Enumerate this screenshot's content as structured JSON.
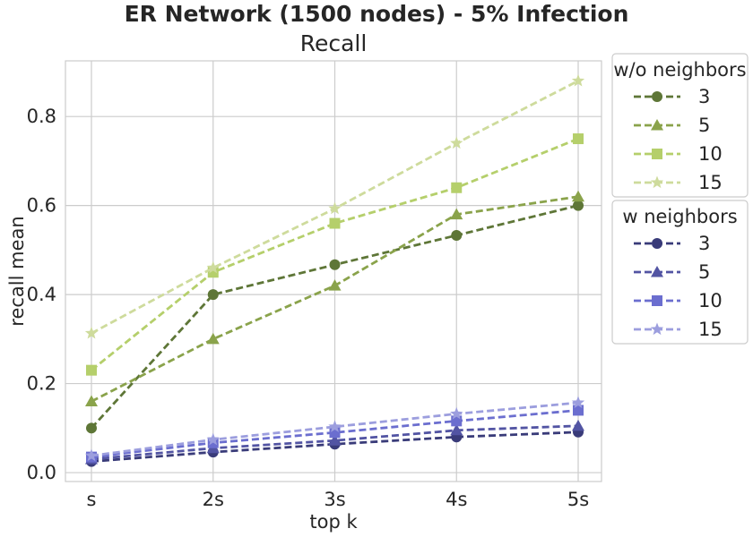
{
  "chart_data": {
    "type": "line",
    "title": "ER Network (1500 nodes) - 5% Infection",
    "subtitle": "Recall",
    "xlabel": "top k",
    "ylabel": "recall mean",
    "categories": [
      "s",
      "2s",
      "3s",
      "4s",
      "5s"
    ],
    "ylim": [
      -0.02,
      0.925
    ],
    "yticks": [
      "0.0",
      "0.2",
      "0.4",
      "0.6",
      "0.8"
    ],
    "ytick_values": [
      0.0,
      0.2,
      0.4,
      0.6,
      0.8
    ],
    "grid": true,
    "legend_placement": "outside right",
    "legends": [
      {
        "title": "w/o neighbors",
        "series": [
          {
            "name": "3",
            "values": [
              0.1,
              0.4,
              0.467,
              0.533,
              0.6
            ],
            "color": "#5e7637",
            "marker": "circle"
          },
          {
            "name": "5",
            "values": [
              0.16,
              0.3,
              0.42,
              0.58,
              0.62
            ],
            "color": "#8aa34b",
            "marker": "triangle"
          },
          {
            "name": "10",
            "values": [
              0.23,
              0.45,
              0.56,
              0.64,
              0.75
            ],
            "color": "#b5cf6b",
            "marker": "square"
          },
          {
            "name": "15",
            "values": [
              0.313,
              0.46,
              0.593,
              0.74,
              0.88
            ],
            "color": "#cedb9c",
            "marker": "star"
          }
        ]
      },
      {
        "title": "w neighbors",
        "series": [
          {
            "name": "3",
            "values": [
              0.025,
              0.046,
              0.064,
              0.08,
              0.091
            ],
            "color": "#393b79",
            "marker": "circle"
          },
          {
            "name": "5",
            "values": [
              0.03,
              0.055,
              0.072,
              0.095,
              0.105
            ],
            "color": "#5254a3",
            "marker": "triangle"
          },
          {
            "name": "10",
            "values": [
              0.035,
              0.067,
              0.09,
              0.116,
              0.14
            ],
            "color": "#6b6ecf",
            "marker": "square"
          },
          {
            "name": "15",
            "values": [
              0.038,
              0.074,
              0.103,
              0.132,
              0.157
            ],
            "color": "#9c9ede",
            "marker": "star"
          }
        ]
      }
    ]
  }
}
